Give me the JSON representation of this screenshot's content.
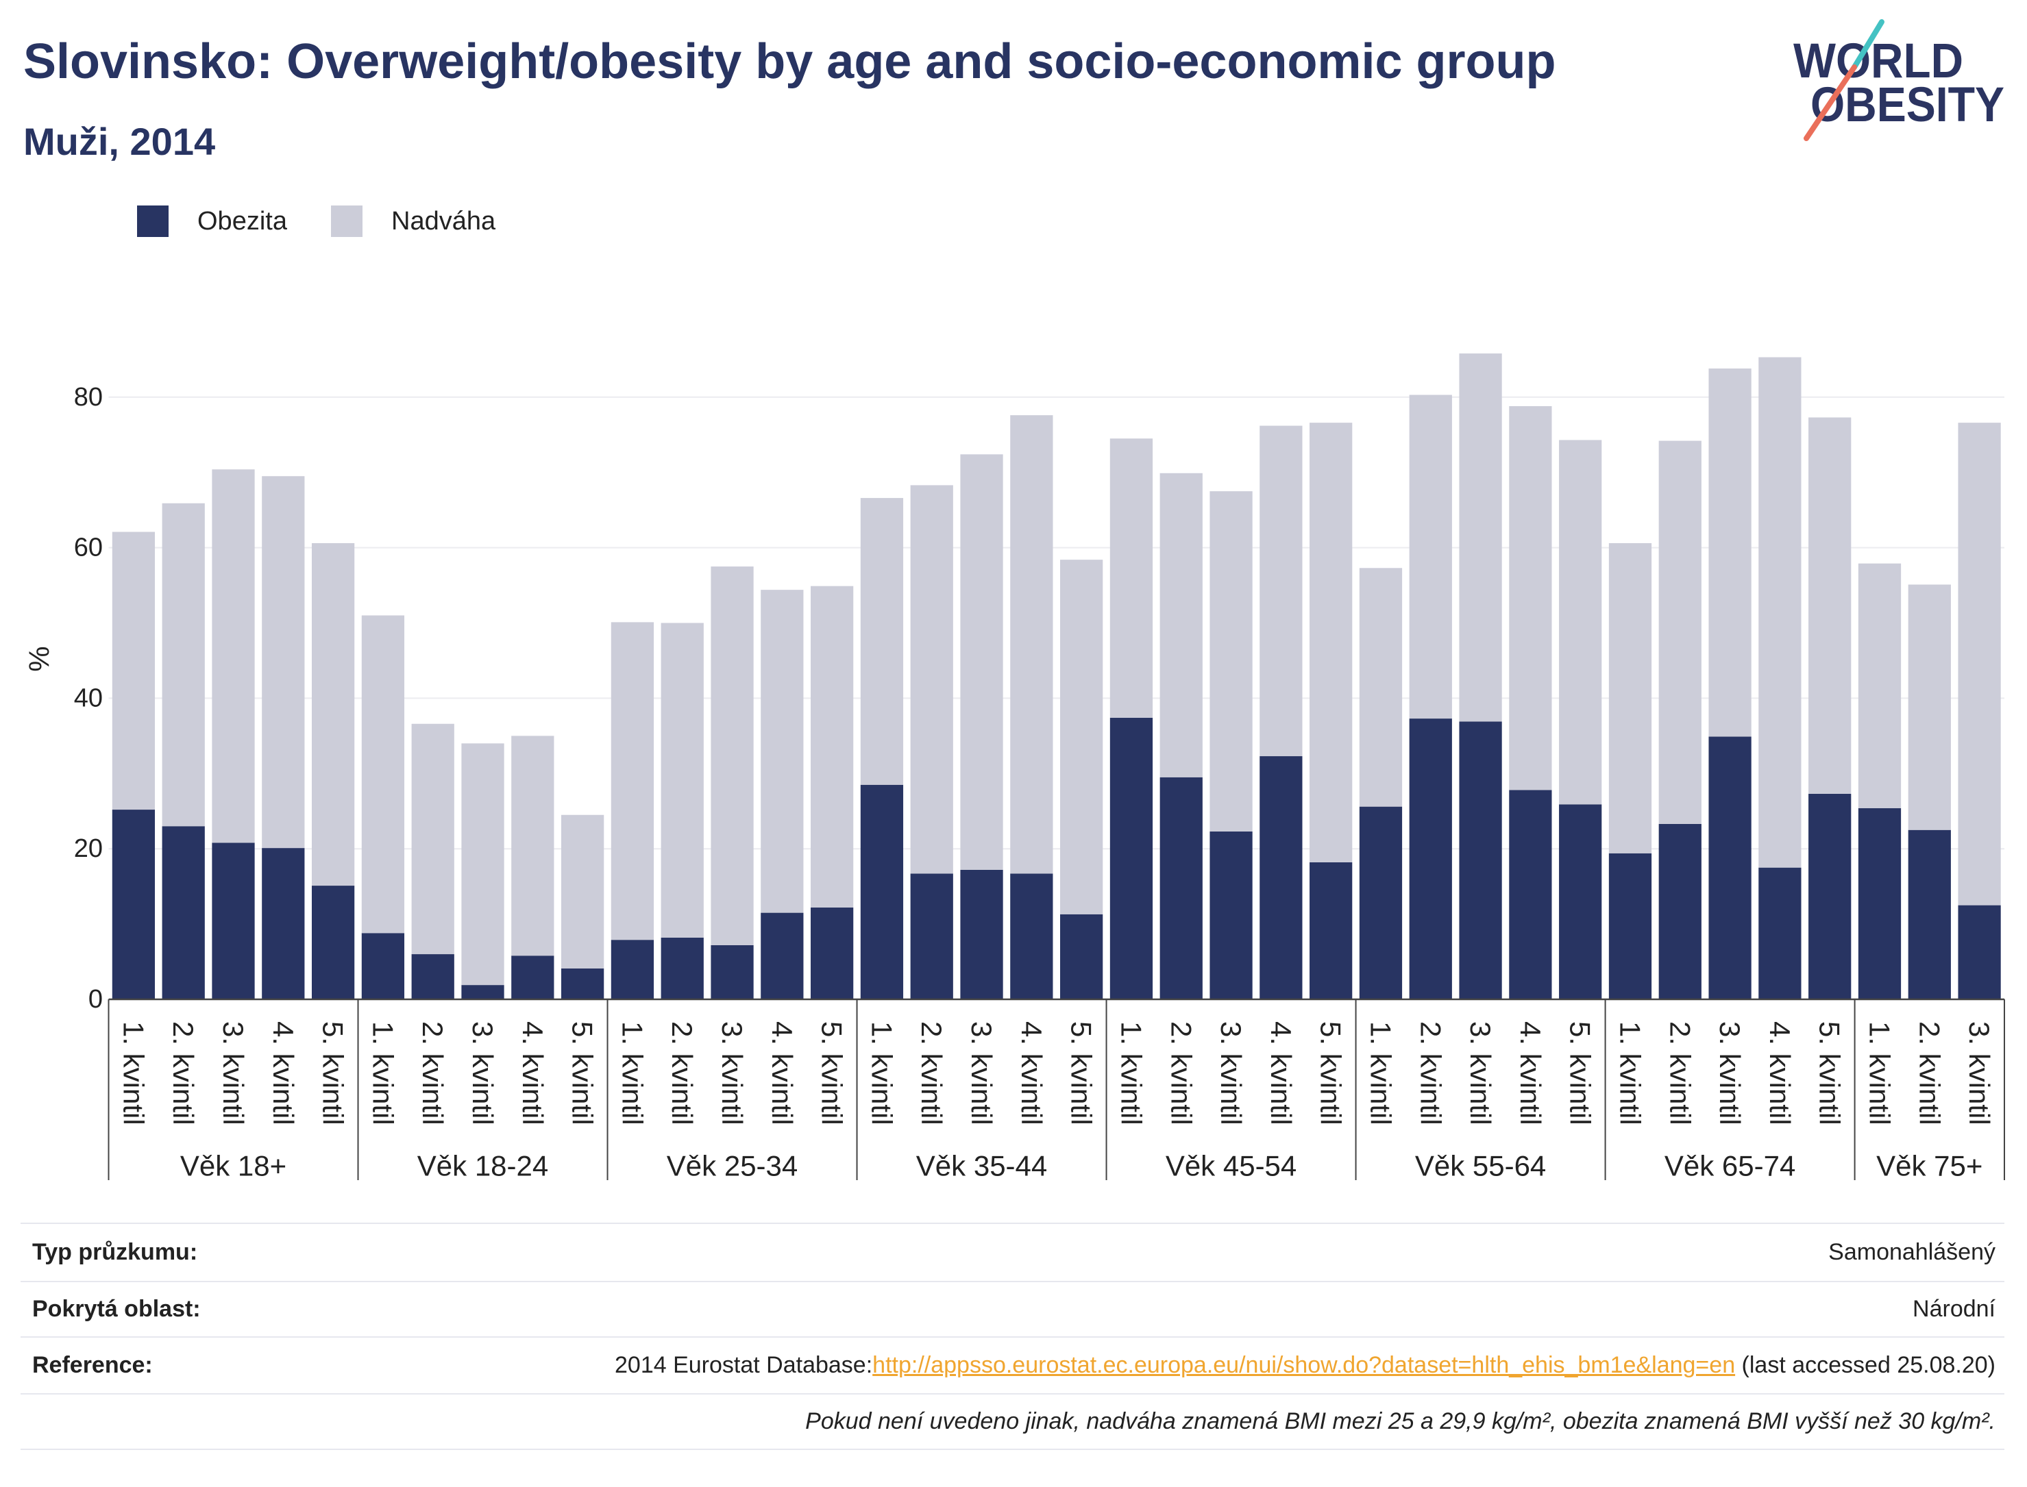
{
  "title": "Slovinsko: Overweight/obesity by age and socio-economic group",
  "subtitle": "Muži, 2014",
  "logo": {
    "line1": "WORLD",
    "line2": "OBESITY"
  },
  "colors": {
    "title": "#283462",
    "logo_text": "#2b3461",
    "logo_teal": "#44c2c3",
    "logo_coral": "#ea6f5a",
    "link": "#f0a52f",
    "axis": "#444444",
    "grid": "#ececf0"
  },
  "chart_data": {
    "type": "bar",
    "barmode": "stack",
    "ylabel": "%",
    "ylim": [
      0,
      90
    ],
    "yticks": [
      0,
      20,
      40,
      60,
      80
    ],
    "grid": true,
    "legend": {
      "position": "top-left"
    },
    "groups": [
      {
        "label": "Věk 18+",
        "categories": [
          "1. kvintil",
          "2. kvintil",
          "3. kvintil",
          "4. kvintil",
          "5. kvintil"
        ]
      },
      {
        "label": "Věk 18-24",
        "categories": [
          "1. kvintil",
          "2. kvintil",
          "3. kvintil",
          "4. kvintil",
          "5. kvintil"
        ]
      },
      {
        "label": "Věk 25-34",
        "categories": [
          "1. kvintil",
          "2. kvintil",
          "3. kvintil",
          "4. kvintil",
          "5. kvintil"
        ]
      },
      {
        "label": "Věk 35-44",
        "categories": [
          "1. kvintil",
          "2. kvintil",
          "3. kvintil",
          "4. kvintil",
          "5. kvintil"
        ]
      },
      {
        "label": "Věk 45-54",
        "categories": [
          "1. kvintil",
          "2. kvintil",
          "3. kvintil",
          "4. kvintil",
          "5. kvintil"
        ]
      },
      {
        "label": "Věk 55-64",
        "categories": [
          "1. kvintil",
          "2. kvintil",
          "3. kvintil",
          "4. kvintil",
          "5. kvintil"
        ]
      },
      {
        "label": "Věk 65-74",
        "categories": [
          "1. kvintil",
          "2. kvintil",
          "3. kvintil",
          "4. kvintil",
          "5. kvintil"
        ]
      },
      {
        "label": "Věk 75+",
        "categories": [
          "1. kvintil",
          "2. kvintil",
          "3. kvintil"
        ]
      }
    ],
    "series": [
      {
        "name": "Obezita",
        "color": "#283462",
        "values": [
          25.2,
          23.0,
          20.8,
          20.1,
          15.1,
          8.8,
          6.0,
          1.9,
          5.8,
          4.1,
          7.9,
          8.2,
          7.2,
          11.5,
          12.2,
          28.5,
          16.7,
          17.2,
          16.7,
          11.3,
          37.4,
          29.5,
          22.3,
          32.3,
          18.2,
          25.6,
          37.3,
          36.9,
          27.8,
          25.9,
          19.4,
          23.3,
          34.9,
          17.5,
          27.3,
          25.4,
          22.5,
          12.5
        ]
      },
      {
        "name": "Nadváha",
        "color": "#cccdd9",
        "values": [
          36.9,
          42.9,
          49.6,
          49.4,
          45.5,
          42.2,
          30.6,
          32.1,
          29.2,
          20.4,
          42.2,
          41.8,
          50.3,
          42.9,
          42.7,
          38.1,
          51.6,
          55.2,
          60.9,
          47.1,
          37.1,
          40.4,
          45.2,
          43.9,
          58.4,
          31.7,
          43.0,
          48.9,
          51.0,
          48.4,
          41.2,
          50.9,
          48.9,
          67.8,
          50.0,
          32.5,
          32.6,
          64.1
        ]
      }
    ]
  },
  "footer": {
    "survey_type": {
      "label": "Typ průzkumu:",
      "value": "Samonahlášený"
    },
    "coverage": {
      "label": "Pokrytá oblast:",
      "value": "Národní"
    },
    "reference": {
      "label": "Reference:",
      "prefix": "2014 Eurostat Database:",
      "link": "http://appsso.eurostat.ec.europa.eu/nui/show.do?dataset=hlth_ehis_bm1e&lang=en",
      "suffix": " (last accessed 25.08.20)"
    },
    "note": "Pokud není uvedeno jinak, nadváha znamená BMI mezi 25 a 29,9 kg/m², obezita znamená BMI vyšší než 30 kg/m²."
  }
}
